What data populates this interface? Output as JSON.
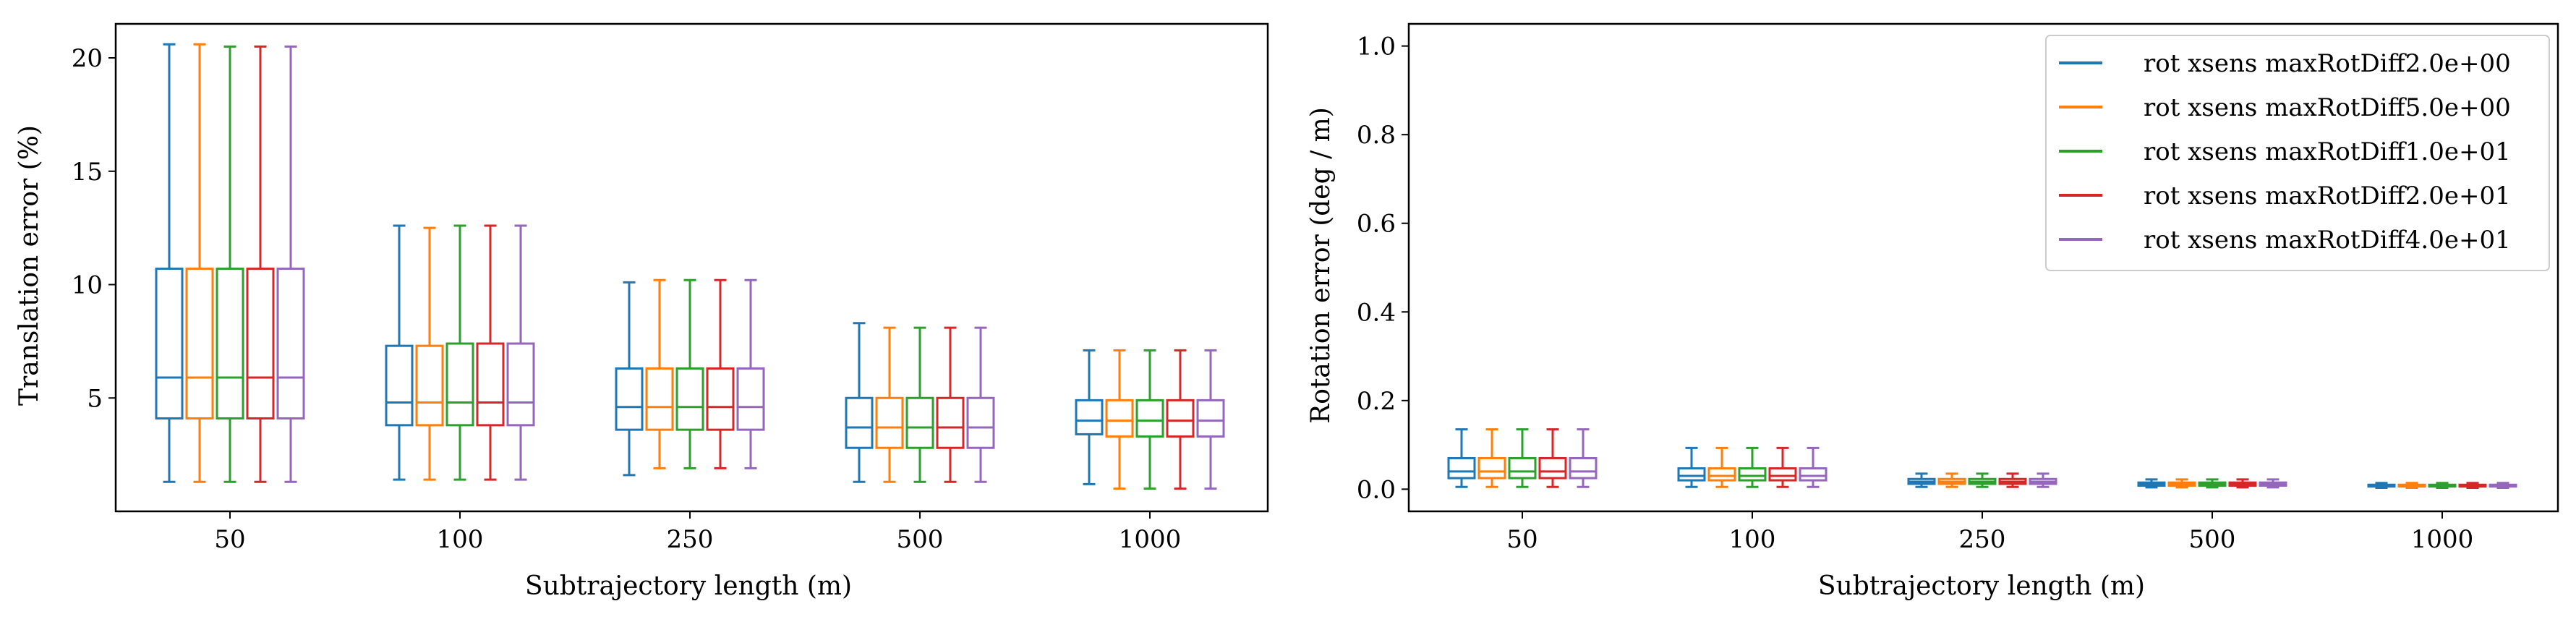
{
  "chart_data": [
    {
      "type": "box",
      "xlabel": "Subtrajectory length (m)",
      "ylabel": "Translation error (%)",
      "ylim": [
        0,
        21.5
      ],
      "yticks": [
        5,
        10,
        15,
        20
      ],
      "categories": [
        "50",
        "100",
        "250",
        "500",
        "1000"
      ],
      "grid": false,
      "series": [
        {
          "name": "rot xsens maxRotDiff2.0e+00",
          "color": "#1f77b4",
          "boxes": [
            {
              "whislo": 1.3,
              "q1": 4.1,
              "med": 5.9,
              "q3": 10.7,
              "whishi": 20.6
            },
            {
              "whislo": 1.4,
              "q1": 3.8,
              "med": 4.8,
              "q3": 7.3,
              "whishi": 12.6
            },
            {
              "whislo": 1.6,
              "q1": 3.6,
              "med": 4.6,
              "q3": 6.3,
              "whishi": 10.1
            },
            {
              "whislo": 1.3,
              "q1": 2.8,
              "med": 3.7,
              "q3": 5.0,
              "whishi": 8.3
            },
            {
              "whislo": 1.2,
              "q1": 3.4,
              "med": 4.0,
              "q3": 4.9,
              "whishi": 7.1
            }
          ]
        },
        {
          "name": "rot xsens maxRotDiff5.0e+00",
          "color": "#ff7f0e",
          "boxes": [
            {
              "whislo": 1.3,
              "q1": 4.1,
              "med": 5.9,
              "q3": 10.7,
              "whishi": 20.6
            },
            {
              "whislo": 1.4,
              "q1": 3.8,
              "med": 4.8,
              "q3": 7.3,
              "whishi": 12.5
            },
            {
              "whislo": 1.9,
              "q1": 3.6,
              "med": 4.6,
              "q3": 6.3,
              "whishi": 10.2
            },
            {
              "whislo": 1.3,
              "q1": 2.8,
              "med": 3.7,
              "q3": 5.0,
              "whishi": 8.1
            },
            {
              "whislo": 1.0,
              "q1": 3.3,
              "med": 4.0,
              "q3": 4.9,
              "whishi": 7.1
            }
          ]
        },
        {
          "name": "rot xsens maxRotDiff1.0e+01",
          "color": "#2ca02c",
          "boxes": [
            {
              "whislo": 1.3,
              "q1": 4.1,
              "med": 5.9,
              "q3": 10.7,
              "whishi": 20.5
            },
            {
              "whislo": 1.4,
              "q1": 3.8,
              "med": 4.8,
              "q3": 7.4,
              "whishi": 12.6
            },
            {
              "whislo": 1.9,
              "q1": 3.6,
              "med": 4.6,
              "q3": 6.3,
              "whishi": 10.2
            },
            {
              "whislo": 1.3,
              "q1": 2.8,
              "med": 3.7,
              "q3": 5.0,
              "whishi": 8.1
            },
            {
              "whislo": 1.0,
              "q1": 3.3,
              "med": 4.0,
              "q3": 4.9,
              "whishi": 7.1
            }
          ]
        },
        {
          "name": "rot xsens maxRotDiff2.0e+01",
          "color": "#d62728",
          "boxes": [
            {
              "whislo": 1.3,
              "q1": 4.1,
              "med": 5.9,
              "q3": 10.7,
              "whishi": 20.5
            },
            {
              "whislo": 1.4,
              "q1": 3.8,
              "med": 4.8,
              "q3": 7.4,
              "whishi": 12.6
            },
            {
              "whislo": 1.9,
              "q1": 3.6,
              "med": 4.6,
              "q3": 6.3,
              "whishi": 10.2
            },
            {
              "whislo": 1.3,
              "q1": 2.8,
              "med": 3.7,
              "q3": 5.0,
              "whishi": 8.1
            },
            {
              "whislo": 1.0,
              "q1": 3.3,
              "med": 4.0,
              "q3": 4.9,
              "whishi": 7.1
            }
          ]
        },
        {
          "name": "rot xsens maxRotDiff4.0e+01",
          "color": "#9467bd",
          "boxes": [
            {
              "whislo": 1.3,
              "q1": 4.1,
              "med": 5.9,
              "q3": 10.7,
              "whishi": 20.5
            },
            {
              "whislo": 1.4,
              "q1": 3.8,
              "med": 4.8,
              "q3": 7.4,
              "whishi": 12.6
            },
            {
              "whislo": 1.9,
              "q1": 3.6,
              "med": 4.6,
              "q3": 6.3,
              "whishi": 10.2
            },
            {
              "whislo": 1.3,
              "q1": 2.8,
              "med": 3.7,
              "q3": 5.0,
              "whishi": 8.1
            },
            {
              "whislo": 1.0,
              "q1": 3.3,
              "med": 4.0,
              "q3": 4.9,
              "whishi": 7.1
            }
          ]
        }
      ]
    },
    {
      "type": "box",
      "xlabel": "Subtrajectory length (m)",
      "ylabel": "Rotation error (deg / m)",
      "ylim": [
        -0.05,
        1.05
      ],
      "yticks": [
        "0.0",
        "0.2",
        "0.4",
        "0.6",
        "0.8",
        "1.0"
      ],
      "categories": [
        "50",
        "100",
        "250",
        "500",
        "1000"
      ],
      "grid": false,
      "legend": {
        "position": "top-right"
      },
      "series": [
        {
          "name": "rot xsens maxRotDiff2.0e+00",
          "color": "#1f77b4",
          "boxes": [
            {
              "whislo": 0.005,
              "q1": 0.025,
              "med": 0.04,
              "q3": 0.07,
              "whishi": 0.135
            },
            {
              "whislo": 0.005,
              "q1": 0.02,
              "med": 0.03,
              "q3": 0.047,
              "whishi": 0.093
            },
            {
              "whislo": 0.005,
              "q1": 0.012,
              "med": 0.017,
              "q3": 0.023,
              "whishi": 0.035
            },
            {
              "whislo": 0.004,
              "q1": 0.008,
              "med": 0.011,
              "q3": 0.015,
              "whishi": 0.022
            },
            {
              "whislo": 0.003,
              "q1": 0.006,
              "med": 0.008,
              "q3": 0.01,
              "whishi": 0.014
            }
          ]
        },
        {
          "name": "rot xsens maxRotDiff5.0e+00",
          "color": "#ff7f0e",
          "boxes": [
            {
              "whislo": 0.005,
              "q1": 0.025,
              "med": 0.04,
              "q3": 0.07,
              "whishi": 0.135
            },
            {
              "whislo": 0.005,
              "q1": 0.02,
              "med": 0.03,
              "q3": 0.047,
              "whishi": 0.093
            },
            {
              "whislo": 0.005,
              "q1": 0.012,
              "med": 0.017,
              "q3": 0.023,
              "whishi": 0.035
            },
            {
              "whislo": 0.004,
              "q1": 0.008,
              "med": 0.011,
              "q3": 0.015,
              "whishi": 0.022
            },
            {
              "whislo": 0.003,
              "q1": 0.006,
              "med": 0.008,
              "q3": 0.01,
              "whishi": 0.014
            }
          ]
        },
        {
          "name": "rot xsens maxRotDiff1.0e+01",
          "color": "#2ca02c",
          "boxes": [
            {
              "whislo": 0.005,
              "q1": 0.025,
              "med": 0.04,
              "q3": 0.07,
              "whishi": 0.135
            },
            {
              "whislo": 0.005,
              "q1": 0.02,
              "med": 0.03,
              "q3": 0.047,
              "whishi": 0.093
            },
            {
              "whislo": 0.005,
              "q1": 0.012,
              "med": 0.017,
              "q3": 0.023,
              "whishi": 0.035
            },
            {
              "whislo": 0.004,
              "q1": 0.008,
              "med": 0.011,
              "q3": 0.015,
              "whishi": 0.022
            },
            {
              "whislo": 0.003,
              "q1": 0.006,
              "med": 0.008,
              "q3": 0.01,
              "whishi": 0.014
            }
          ]
        },
        {
          "name": "rot xsens maxRotDiff2.0e+01",
          "color": "#d62728",
          "boxes": [
            {
              "whislo": 0.005,
              "q1": 0.025,
              "med": 0.04,
              "q3": 0.07,
              "whishi": 0.135
            },
            {
              "whislo": 0.005,
              "q1": 0.02,
              "med": 0.03,
              "q3": 0.047,
              "whishi": 0.093
            },
            {
              "whislo": 0.005,
              "q1": 0.012,
              "med": 0.017,
              "q3": 0.023,
              "whishi": 0.035
            },
            {
              "whislo": 0.004,
              "q1": 0.008,
              "med": 0.011,
              "q3": 0.015,
              "whishi": 0.022
            },
            {
              "whislo": 0.003,
              "q1": 0.006,
              "med": 0.008,
              "q3": 0.01,
              "whishi": 0.014
            }
          ]
        },
        {
          "name": "rot xsens maxRotDiff4.0e+01",
          "color": "#9467bd",
          "boxes": [
            {
              "whislo": 0.005,
              "q1": 0.025,
              "med": 0.04,
              "q3": 0.07,
              "whishi": 0.135
            },
            {
              "whislo": 0.005,
              "q1": 0.02,
              "med": 0.03,
              "q3": 0.047,
              "whishi": 0.093
            },
            {
              "whislo": 0.005,
              "q1": 0.012,
              "med": 0.017,
              "q3": 0.023,
              "whishi": 0.035
            },
            {
              "whislo": 0.004,
              "q1": 0.008,
              "med": 0.011,
              "q3": 0.015,
              "whishi": 0.022
            },
            {
              "whislo": 0.003,
              "q1": 0.006,
              "med": 0.008,
              "q3": 0.01,
              "whishi": 0.014
            }
          ]
        }
      ]
    }
  ]
}
